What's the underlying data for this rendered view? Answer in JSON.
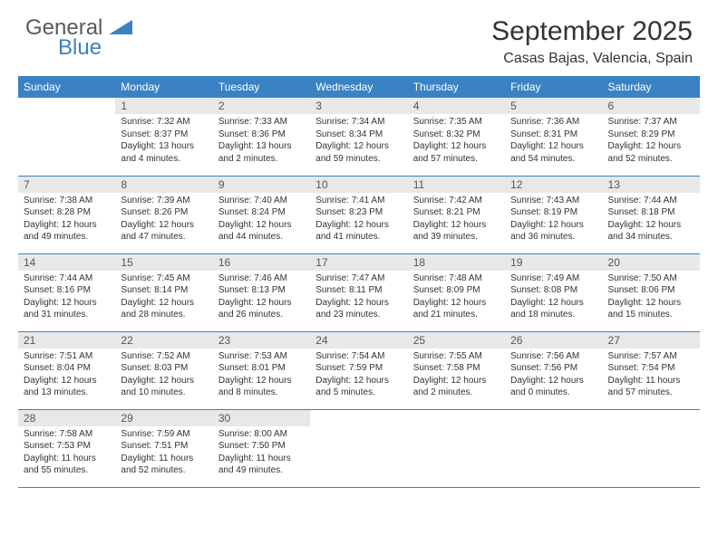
{
  "brand": {
    "name_gray": "General",
    "name_blue": "Blue"
  },
  "title": "September 2025",
  "location": "Casas Bajas, Valencia, Spain",
  "colors": {
    "header_bg": "#3b82c4",
    "header_fg": "#ffffff",
    "daynum_bg": "#e8e8e8",
    "border": "#3b82c4",
    "text": "#333333",
    "logo_gray": "#5a5a5a",
    "logo_blue": "#3b82c4"
  },
  "typography": {
    "title_fontsize": 30,
    "location_fontsize": 16,
    "weekday_fontsize": 12,
    "daynum_fontsize": 12,
    "cell_fontsize": 10
  },
  "weekdays": [
    "Sunday",
    "Monday",
    "Tuesday",
    "Wednesday",
    "Thursday",
    "Friday",
    "Saturday"
  ],
  "weeks": [
    [
      {
        "n": "",
        "sr": "",
        "ss": "",
        "dl": ""
      },
      {
        "n": "1",
        "sr": "7:32 AM",
        "ss": "8:37 PM",
        "dl": "13 hours and 4 minutes."
      },
      {
        "n": "2",
        "sr": "7:33 AM",
        "ss": "8:36 PM",
        "dl": "13 hours and 2 minutes."
      },
      {
        "n": "3",
        "sr": "7:34 AM",
        "ss": "8:34 PM",
        "dl": "12 hours and 59 minutes."
      },
      {
        "n": "4",
        "sr": "7:35 AM",
        "ss": "8:32 PM",
        "dl": "12 hours and 57 minutes."
      },
      {
        "n": "5",
        "sr": "7:36 AM",
        "ss": "8:31 PM",
        "dl": "12 hours and 54 minutes."
      },
      {
        "n": "6",
        "sr": "7:37 AM",
        "ss": "8:29 PM",
        "dl": "12 hours and 52 minutes."
      }
    ],
    [
      {
        "n": "7",
        "sr": "7:38 AM",
        "ss": "8:28 PM",
        "dl": "12 hours and 49 minutes."
      },
      {
        "n": "8",
        "sr": "7:39 AM",
        "ss": "8:26 PM",
        "dl": "12 hours and 47 minutes."
      },
      {
        "n": "9",
        "sr": "7:40 AM",
        "ss": "8:24 PM",
        "dl": "12 hours and 44 minutes."
      },
      {
        "n": "10",
        "sr": "7:41 AM",
        "ss": "8:23 PM",
        "dl": "12 hours and 41 minutes."
      },
      {
        "n": "11",
        "sr": "7:42 AM",
        "ss": "8:21 PM",
        "dl": "12 hours and 39 minutes."
      },
      {
        "n": "12",
        "sr": "7:43 AM",
        "ss": "8:19 PM",
        "dl": "12 hours and 36 minutes."
      },
      {
        "n": "13",
        "sr": "7:44 AM",
        "ss": "8:18 PM",
        "dl": "12 hours and 34 minutes."
      }
    ],
    [
      {
        "n": "14",
        "sr": "7:44 AM",
        "ss": "8:16 PM",
        "dl": "12 hours and 31 minutes."
      },
      {
        "n": "15",
        "sr": "7:45 AM",
        "ss": "8:14 PM",
        "dl": "12 hours and 28 minutes."
      },
      {
        "n": "16",
        "sr": "7:46 AM",
        "ss": "8:13 PM",
        "dl": "12 hours and 26 minutes."
      },
      {
        "n": "17",
        "sr": "7:47 AM",
        "ss": "8:11 PM",
        "dl": "12 hours and 23 minutes."
      },
      {
        "n": "18",
        "sr": "7:48 AM",
        "ss": "8:09 PM",
        "dl": "12 hours and 21 minutes."
      },
      {
        "n": "19",
        "sr": "7:49 AM",
        "ss": "8:08 PM",
        "dl": "12 hours and 18 minutes."
      },
      {
        "n": "20",
        "sr": "7:50 AM",
        "ss": "8:06 PM",
        "dl": "12 hours and 15 minutes."
      }
    ],
    [
      {
        "n": "21",
        "sr": "7:51 AM",
        "ss": "8:04 PM",
        "dl": "12 hours and 13 minutes."
      },
      {
        "n": "22",
        "sr": "7:52 AM",
        "ss": "8:03 PM",
        "dl": "12 hours and 10 minutes."
      },
      {
        "n": "23",
        "sr": "7:53 AM",
        "ss": "8:01 PM",
        "dl": "12 hours and 8 minutes."
      },
      {
        "n": "24",
        "sr": "7:54 AM",
        "ss": "7:59 PM",
        "dl": "12 hours and 5 minutes."
      },
      {
        "n": "25",
        "sr": "7:55 AM",
        "ss": "7:58 PM",
        "dl": "12 hours and 2 minutes."
      },
      {
        "n": "26",
        "sr": "7:56 AM",
        "ss": "7:56 PM",
        "dl": "12 hours and 0 minutes."
      },
      {
        "n": "27",
        "sr": "7:57 AM",
        "ss": "7:54 PM",
        "dl": "11 hours and 57 minutes."
      }
    ],
    [
      {
        "n": "28",
        "sr": "7:58 AM",
        "ss": "7:53 PM",
        "dl": "11 hours and 55 minutes."
      },
      {
        "n": "29",
        "sr": "7:59 AM",
        "ss": "7:51 PM",
        "dl": "11 hours and 52 minutes."
      },
      {
        "n": "30",
        "sr": "8:00 AM",
        "ss": "7:50 PM",
        "dl": "11 hours and 49 minutes."
      },
      {
        "n": "",
        "sr": "",
        "ss": "",
        "dl": ""
      },
      {
        "n": "",
        "sr": "",
        "ss": "",
        "dl": ""
      },
      {
        "n": "",
        "sr": "",
        "ss": "",
        "dl": ""
      },
      {
        "n": "",
        "sr": "",
        "ss": "",
        "dl": ""
      }
    ]
  ],
  "labels": {
    "sunrise": "Sunrise:",
    "sunset": "Sunset:",
    "daylight": "Daylight:"
  }
}
